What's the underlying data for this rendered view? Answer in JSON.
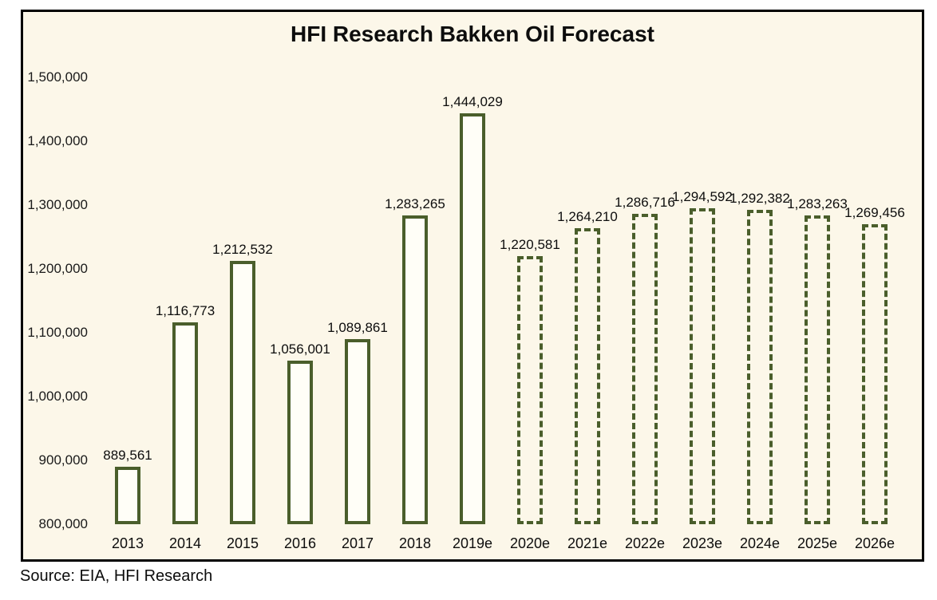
{
  "chart_data": {
    "type": "bar",
    "title": "HFI Research Bakken Oil Forecast",
    "categories": [
      "2013",
      "2014",
      "2015",
      "2016",
      "2017",
      "2018",
      "2019e",
      "2020e",
      "2021e",
      "2022e",
      "2023e",
      "2024e",
      "2025e",
      "2026e"
    ],
    "values": [
      889561,
      1116773,
      1212532,
      1056001,
      1089861,
      1283265,
      1444029,
      1220581,
      1264210,
      1286716,
      1294592,
      1292382,
      1283263,
      1269456
    ],
    "value_labels": [
      "889,561",
      "1,116,773",
      "1,212,532",
      "1,056,001",
      "1,089,861",
      "1,283,265",
      "1,444,029",
      "1,220,581",
      "1,264,210",
      "1,286,716",
      "1,294,592",
      "1,292,382",
      "1,283,263",
      "1,269,456"
    ],
    "bar_style": [
      "solid",
      "solid",
      "solid",
      "solid",
      "solid",
      "solid",
      "solid",
      "dashed",
      "dashed",
      "dashed",
      "dashed",
      "dashed",
      "dashed",
      "dashed"
    ],
    "ylim": [
      800000,
      1500000
    ],
    "yticks": [
      1500000,
      1400000,
      1300000,
      1200000,
      1100000,
      1000000,
      900000,
      800000
    ],
    "ytick_labels": [
      "1,500,000",
      "1,400,000",
      "1,300,000",
      "1,200,000",
      "1,100,000",
      "1,000,000",
      "900,000",
      "800,000"
    ],
    "grid": false,
    "legend": "none",
    "bar_border_color": "#4a5e2b",
    "solid_bar_fill": "#fffef7",
    "plot_background": "#fcf7e9",
    "frame_border_color": "#000000"
  },
  "source": "Source: EIA, HFI Research"
}
